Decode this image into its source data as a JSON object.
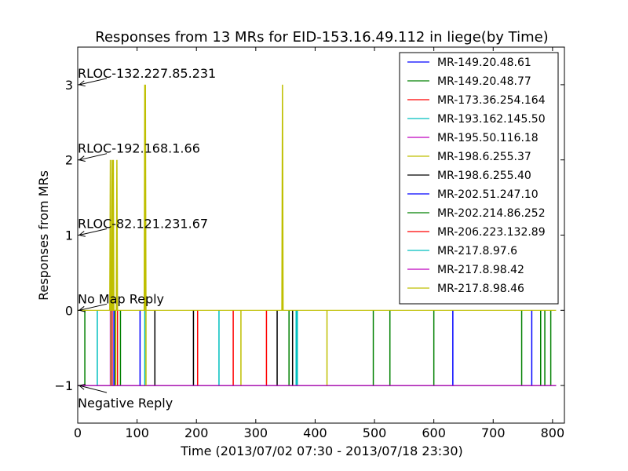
{
  "chart_data": {
    "type": "line",
    "title": "Responses from 13 MRs for EID-153.16.49.112 in liege(by Time)",
    "xlabel": "Time (2013/07/02 07:30 - 2013/07/18 23:30)",
    "ylabel": "Responses from MRs",
    "xlim": [
      0,
      820
    ],
    "ylim": [
      -1.5,
      3.5
    ],
    "xticks": [
      0,
      100,
      200,
      300,
      400,
      500,
      600,
      700,
      800
    ],
    "yticks": [
      -1,
      0,
      1,
      2,
      3
    ],
    "ytick_labels": [
      "−1",
      "0",
      "1",
      "2",
      "3"
    ],
    "grid": false,
    "legend_position": "top-right",
    "annotations": [
      {
        "text": "RLOC-132.227.85.231",
        "x": 0,
        "y": 3
      },
      {
        "text": "RLOC-192.168.1.66",
        "x": 0,
        "y": 2
      },
      {
        "text": "RLOC-82.121.231.67",
        "x": 0,
        "y": 1
      },
      {
        "text": "No Map Reply",
        "x": 0,
        "y": 0
      },
      {
        "text": "Negative Reply",
        "x": 0,
        "y": -1
      }
    ],
    "series": [
      {
        "name": "MR-149.20.48.61",
        "color": "#0000ff",
        "baseline": -1,
        "up_at": [],
        "drop_at": [
          105,
          632,
          765
        ]
      },
      {
        "name": "MR-149.20.48.77",
        "color": "#008000",
        "baseline": -1,
        "up_at": [],
        "drop_at": [
          12,
          63,
          72,
          356,
          498,
          526,
          600,
          748,
          787,
          797
        ]
      },
      {
        "name": "MR-173.36.254.164",
        "color": "#ff0000",
        "baseline": -1,
        "up_at": [],
        "drop_at": [
          58,
          202,
          262,
          318
        ]
      },
      {
        "name": "MR-193.162.145.50",
        "color": "#00bfbf",
        "baseline": -1,
        "up_at": [],
        "drop_at": [
          33,
          113,
          238,
          368
        ]
      },
      {
        "name": "MR-195.50.116.18",
        "color": "#bf00bf",
        "baseline": -1,
        "up_at": [],
        "drop_at": [
          55
        ]
      },
      {
        "name": "MR-198.6.255.37",
        "color": "#bfbf00",
        "baseline": -1,
        "up_at": [],
        "drop_at": [
          275,
          420
        ]
      },
      {
        "name": "MR-198.6.255.40",
        "color": "#000000",
        "baseline": -1,
        "up_at": [],
        "drop_at": [
          130,
          195,
          336,
          362
        ]
      },
      {
        "name": "MR-202.51.247.10",
        "color": "#0000ff",
        "baseline": -1,
        "up_at": [],
        "drop_at": [
          61
        ]
      },
      {
        "name": "MR-202.214.86.252",
        "color": "#008000",
        "baseline": -1,
        "up_at": [],
        "drop_at": [
          780
        ]
      },
      {
        "name": "MR-206.223.132.89",
        "color": "#ff0000",
        "baseline": -1,
        "up_at": [],
        "drop_at": [
          67
        ]
      },
      {
        "name": "MR-217.8.97.6",
        "color": "#00bfbf",
        "baseline": -1,
        "up_at": [],
        "drop_at": [
          370
        ]
      },
      {
        "name": "MR-217.8.98.42",
        "color": "#bf00bf",
        "baseline": -1,
        "up_at": [],
        "drop_at": [
          57
        ]
      },
      {
        "name": "MR-217.8.98.46",
        "color": "#bfbf00",
        "baseline": 0,
        "up_at": [
          [
            55,
            2
          ],
          [
            58,
            2
          ],
          [
            60,
            2
          ],
          [
            66,
            2
          ],
          [
            113,
            3
          ],
          [
            114,
            3
          ],
          [
            345,
            3
          ]
        ],
        "drop_at": [
          56,
          64,
          115
        ]
      }
    ]
  }
}
